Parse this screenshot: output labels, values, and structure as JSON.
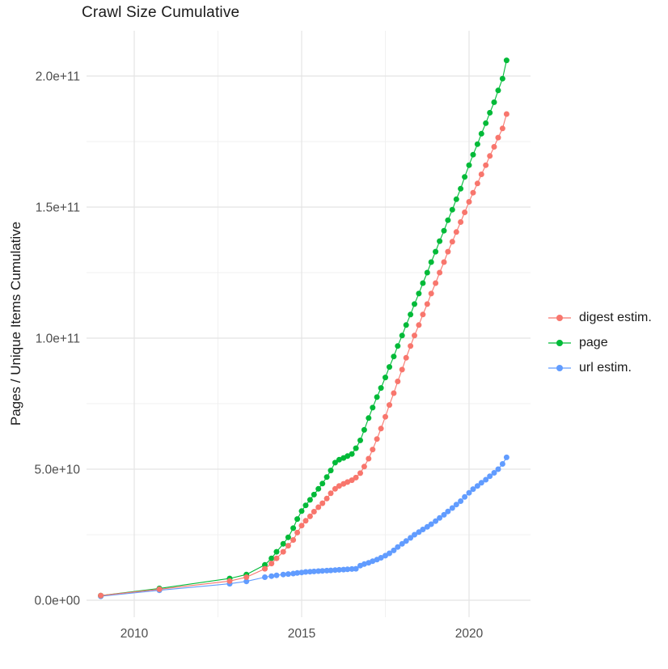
{
  "title": "Crawl Size Cumulative",
  "axes": {
    "y_label": "Pages / Unique Items Cumulative",
    "x_tick_labels": [
      "2010",
      "2015",
      "2020"
    ],
    "x_tick_years": [
      2010,
      2015,
      2020
    ],
    "y_tick_labels": [
      "0.0e+00",
      "5.0e+10",
      "1.0e+11",
      "1.5e+11",
      "2.0e+11"
    ],
    "y_tick_values_billion": [
      0,
      50,
      100,
      150,
      200
    ]
  },
  "legend": {
    "items": [
      {
        "label": "digest estim.",
        "color": "#F8766D"
      },
      {
        "label": "page",
        "color": "#00BA38"
      },
      {
        "label": "url estim.",
        "color": "#619CFF"
      }
    ]
  },
  "colors": {
    "digest": "#F8766D",
    "page": "#00BA38",
    "url": "#619CFF",
    "grid_major": "#e4e4e4",
    "grid_minor": "#f0f0f0",
    "tick_text": "#4d4d4d"
  },
  "chart_data": {
    "type": "line",
    "title": "Crawl Size Cumulative",
    "xlabel": "",
    "ylabel": "Pages / Unique Items Cumulative",
    "value_unit": "pages, values in billions (1e9)",
    "xlim": [
      2008.6,
      2021.9
    ],
    "ylim_billion": [
      0,
      216
    ],
    "grid": true,
    "legend_position": "right",
    "x_years": [
      2009.0,
      2010.75,
      2012.85,
      2013.35,
      2013.9,
      2014.1,
      2014.25,
      2014.45,
      2014.6,
      2014.75,
      2014.87,
      2015.0,
      2015.12,
      2015.25,
      2015.37,
      2015.5,
      2015.62,
      2015.75,
      2015.87,
      2016.0,
      2016.12,
      2016.25,
      2016.37,
      2016.5,
      2016.62,
      2016.75,
      2016.87,
      2017.0,
      2017.12,
      2017.25,
      2017.37,
      2017.5,
      2017.62,
      2017.75,
      2017.87,
      2018.0,
      2018.12,
      2018.25,
      2018.37,
      2018.5,
      2018.62,
      2018.75,
      2018.87,
      2019.0,
      2019.12,
      2019.25,
      2019.37,
      2019.5,
      2019.62,
      2019.75,
      2019.87,
      2020.0,
      2020.12,
      2020.25,
      2020.37,
      2020.5,
      2020.62,
      2020.75,
      2020.87,
      2021.0,
      2021.12
    ],
    "series": [
      {
        "name": "digest estim.",
        "color": "#F8766D",
        "values_billion": [
          1.8,
          4.2,
          7.3,
          8.8,
          12,
          14,
          16,
          18.5,
          20.8,
          23,
          25.8,
          28.5,
          30.3,
          32,
          33.8,
          35.5,
          37,
          38.8,
          40.8,
          42.5,
          43.6,
          44.4,
          45.1,
          45.8,
          46.8,
          48.5,
          51,
          54,
          57.5,
          61.5,
          65.5,
          70,
          74.5,
          79,
          83.5,
          88,
          92.5,
          97,
          101,
          105,
          109,
          113,
          117,
          121,
          125,
          129,
          133,
          136.8,
          140.5,
          144.3,
          148,
          152,
          155.5,
          159,
          162.5,
          166,
          169.5,
          173,
          176.5,
          180,
          185.5
        ]
      },
      {
        "name": "page",
        "color": "#00BA38",
        "values_billion": [
          1.8,
          4.5,
          8.3,
          9.8,
          13.5,
          16,
          18.5,
          21.5,
          24,
          27.5,
          31,
          34,
          36.2,
          38.3,
          40.3,
          42.5,
          44.5,
          47,
          49.5,
          52.5,
          53.6,
          54.3,
          55,
          55.8,
          58,
          61,
          65,
          69.5,
          73.5,
          77.5,
          81,
          85,
          89,
          93,
          97,
          101,
          105,
          109,
          113,
          117,
          121,
          125,
          129,
          133,
          137,
          141,
          145,
          149,
          153,
          157,
          161.5,
          166,
          170,
          174,
          178,
          182,
          186,
          190,
          194.5,
          199,
          206
        ]
      },
      {
        "name": "url estim.",
        "color": "#619CFF",
        "values_billion": [
          1.5,
          3.8,
          6.3,
          7.2,
          8.8,
          9.2,
          9.5,
          9.8,
          10,
          10.2,
          10.4,
          10.6,
          10.8,
          10.9,
          11,
          11.1,
          11.2,
          11.3,
          11.4,
          11.5,
          11.6,
          11.7,
          11.8,
          11.9,
          12,
          13.2,
          13.8,
          14.3,
          14.9,
          15.5,
          16.2,
          17,
          17.9,
          19,
          20.3,
          21.5,
          22.6,
          23.8,
          25,
          26,
          27,
          28,
          29,
          30.2,
          31.4,
          32.6,
          33.9,
          35.2,
          36.5,
          37.8,
          39.4,
          41,
          42.4,
          43.6,
          44.8,
          46,
          47.3,
          48.6,
          50,
          52,
          54.5
        ]
      }
    ]
  }
}
